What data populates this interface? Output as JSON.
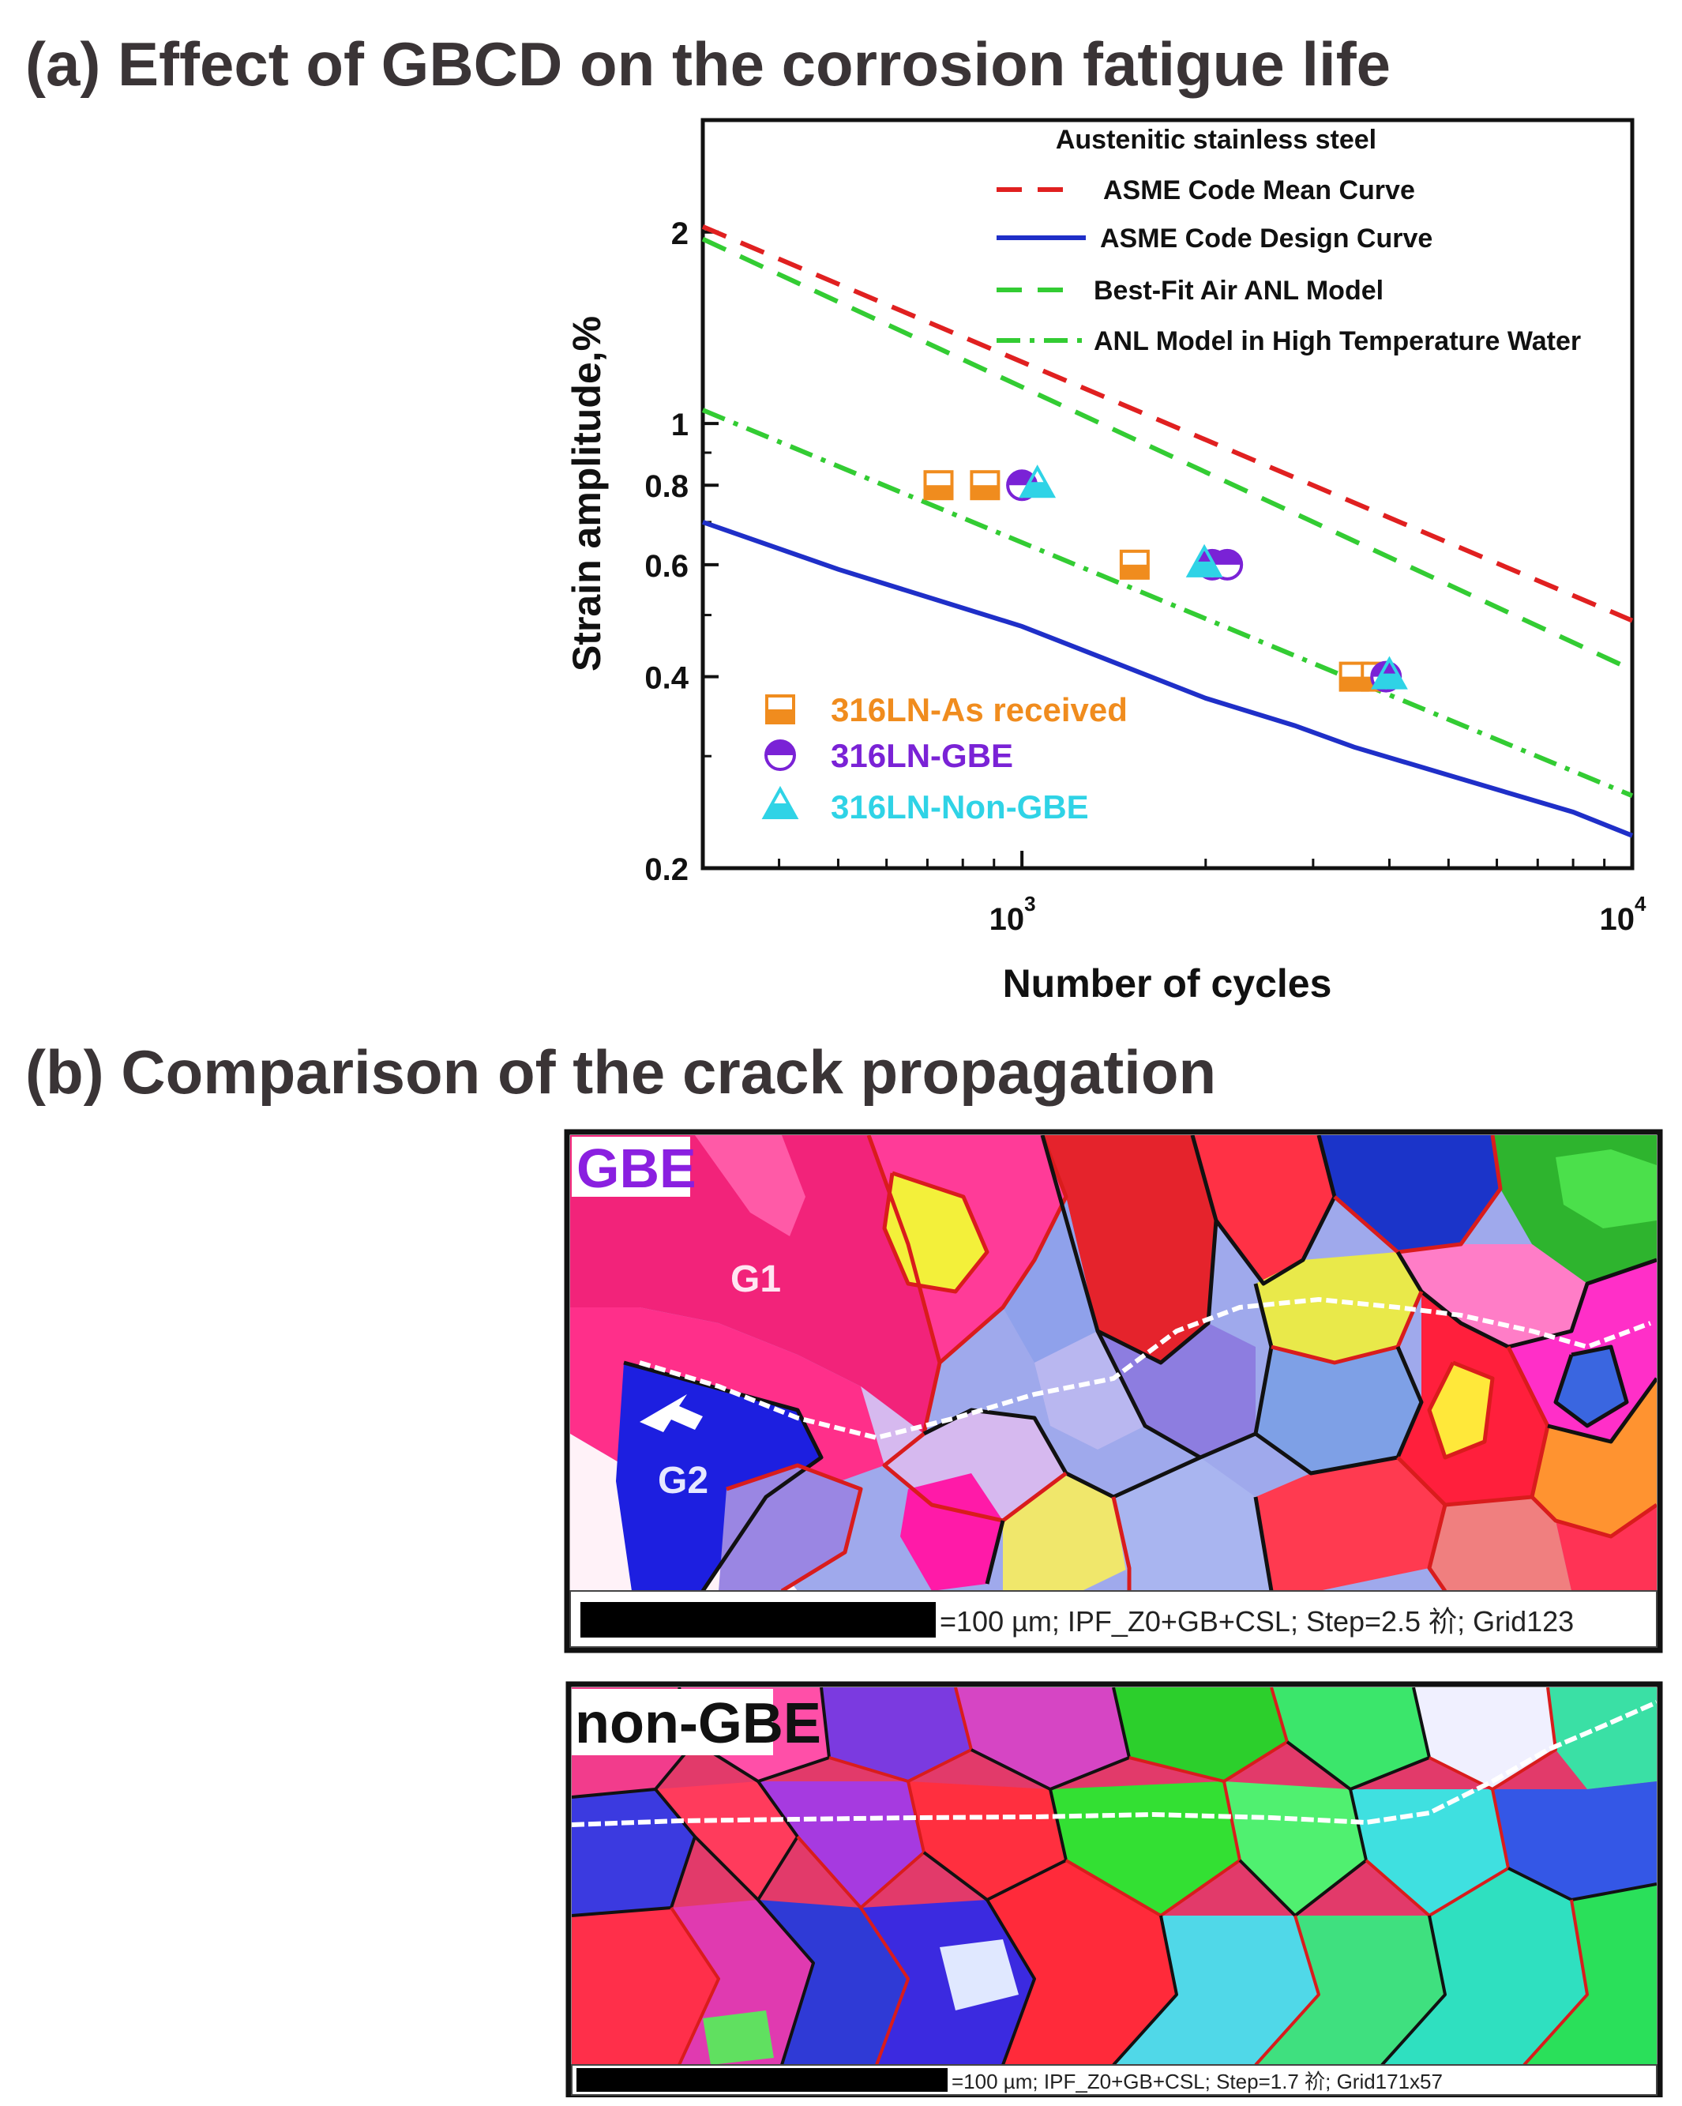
{
  "headings": {
    "a": "(a) Effect of GBCD on the corrosion fatigue life",
    "b": "(b) Comparison of the crack propagation"
  },
  "chart_data": {
    "type": "line",
    "x_scale": "log",
    "y_scale": "log",
    "xlim": [
      300,
      10000
    ],
    "ylim": [
      0.2,
      3.0
    ],
    "xlabel": "Number of cycles",
    "ylabel": "Strain amplitude,%",
    "x_ticks": [
      {
        "value": 1000,
        "base": "10",
        "exp": "3"
      },
      {
        "value": 10000,
        "base": "10",
        "exp": "4"
      }
    ],
    "y_ticks": [
      {
        "value": 0.2,
        "label": "0.2"
      },
      {
        "value": 0.4,
        "label": "0.4"
      },
      {
        "value": 0.6,
        "label": "0.6"
      },
      {
        "value": 0.8,
        "label": "0.8"
      },
      {
        "value": 1,
        "label": "1"
      },
      {
        "value": 2,
        "label": "2"
      }
    ],
    "legend_title": "Austenitic stainless steel",
    "legend_placement": "top-right",
    "grid": false,
    "lines": [
      {
        "name": "ASME Code Mean Curve",
        "color": "#e02020",
        "dash": "dashed",
        "points": [
          [
            300,
            2.04
          ],
          [
            10000,
            0.49
          ]
        ]
      },
      {
        "name": "ASME Code Design Curve",
        "color": "#1f2fc8",
        "dash": "solid",
        "points": [
          [
            300,
            0.7
          ],
          [
            500,
            0.59
          ],
          [
            1000,
            0.48
          ],
          [
            2000,
            0.37
          ],
          [
            2800,
            0.335
          ],
          [
            3500,
            0.31
          ],
          [
            5000,
            0.28
          ],
          [
            8000,
            0.245
          ],
          [
            10000,
            0.225
          ]
        ]
      },
      {
        "name": "Best-Fit Air ANL Model",
        "color": "#33cc33",
        "dash": "dashed",
        "points": [
          [
            300,
            1.95
          ],
          [
            10000,
            0.41
          ]
        ]
      },
      {
        "name": "ANL Model in High Temperature Water",
        "color": "#33cc33",
        "dash": "dashdot",
        "points": [
          [
            300,
            1.05
          ],
          [
            10000,
            0.26
          ]
        ]
      }
    ],
    "series": [
      {
        "name": "316LN-As received",
        "marker": "half-square",
        "color": "#f08c1e",
        "points": [
          [
            730,
            0.8
          ],
          [
            870,
            0.8
          ],
          [
            1530,
            0.6
          ],
          [
            3500,
            0.4
          ],
          [
            3800,
            0.4
          ]
        ]
      },
      {
        "name": "316LN-GBE",
        "marker": "half-circle",
        "color": "#7a22d6",
        "points": [
          [
            1000,
            0.8
          ],
          [
            2050,
            0.6
          ],
          [
            2170,
            0.6
          ],
          [
            3950,
            0.4
          ]
        ]
      },
      {
        "name": "316LN-Non-GBE",
        "marker": "triangle",
        "color": "#2fd3e6",
        "points": [
          [
            1060,
            0.8
          ],
          [
            1990,
            0.6
          ],
          [
            4000,
            0.4
          ]
        ]
      }
    ]
  },
  "micrographs": [
    {
      "id": "gbe",
      "label": "GBE",
      "label_color": "#8a1fe0",
      "grain_labels": [
        "G1",
        "G2"
      ],
      "scale_text": "=100 µm; IPF_Z0+GB+CSL; Step=2.5 祄; Grid123"
    },
    {
      "id": "nongbe",
      "label": "non-GBE",
      "label_color": "#111111",
      "scale_text": "=100 µm; IPF_Z0+GB+CSL; Step=1.7 祄; Grid171x57"
    }
  ]
}
